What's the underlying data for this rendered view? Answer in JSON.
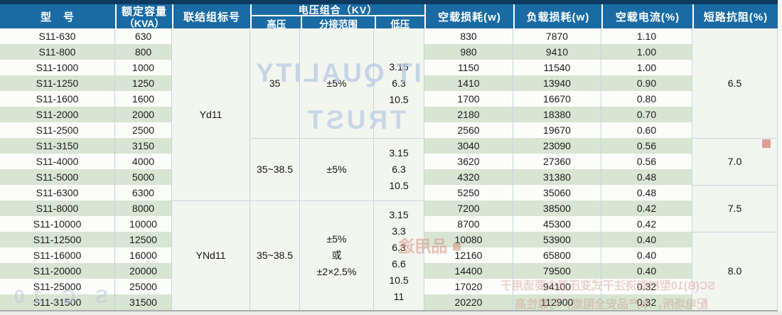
{
  "table": {
    "headers": {
      "model": "型　号",
      "capacity_line1": "额定容量",
      "capacity_line2": "（KVA）",
      "vector_group": "联结组标号",
      "voltage_group": "电压组合（KV）",
      "hv": "高压",
      "tap_range": "分接范围",
      "lv": "低压",
      "no_load_loss": "空载损耗(w)",
      "load_loss": "负载损耗(w)",
      "no_load_current": "空载电流(%)",
      "impedance": "短路抗阻(%)"
    },
    "rows": [
      {
        "model": "S11-630",
        "kva": "630",
        "p0": "830",
        "pk": "7870",
        "i0": "1.10"
      },
      {
        "model": "S11-800",
        "kva": "800",
        "p0": "980",
        "pk": "9410",
        "i0": "1.00"
      },
      {
        "model": "S11-1000",
        "kva": "1000",
        "p0": "1150",
        "pk": "11540",
        "i0": "1.00"
      },
      {
        "model": "S11-1250",
        "kva": "1250",
        "p0": "1410",
        "pk": "13940",
        "i0": "0.90"
      },
      {
        "model": "S11-1600",
        "kva": "1600",
        "p0": "1700",
        "pk": "16670",
        "i0": "0.80"
      },
      {
        "model": "S11-2000",
        "kva": "2000",
        "p0": "2180",
        "pk": "18380",
        "i0": "0.70"
      },
      {
        "model": "S11-2500",
        "kva": "2500",
        "p0": "2560",
        "pk": "19670",
        "i0": "0.60"
      },
      {
        "model": "S11-3150",
        "kva": "3150",
        "p0": "3040",
        "pk": "23090",
        "i0": "0.56"
      },
      {
        "model": "S11-4000",
        "kva": "4000",
        "p0": "3620",
        "pk": "27360",
        "i0": "0.56"
      },
      {
        "model": "S11-5000",
        "kva": "5000",
        "p0": "4320",
        "pk": "31380",
        "i0": "0.48"
      },
      {
        "model": "S11-6300",
        "kva": "6300",
        "p0": "5250",
        "pk": "35060",
        "i0": "0.48"
      },
      {
        "model": "S11-8000",
        "kva": "8000",
        "p0": "7200",
        "pk": "38500",
        "i0": "0.42"
      },
      {
        "model": "S11-10000",
        "kva": "10000",
        "p0": "8700",
        "pk": "45300",
        "i0": "0.42"
      },
      {
        "model": "S11-12500",
        "kva": "12500",
        "p0": "10080",
        "pk": "53900",
        "i0": "0.40"
      },
      {
        "model": "S11-16000",
        "kva": "16000",
        "p0": "12160",
        "pk": "65800",
        "i0": "0.40"
      },
      {
        "model": "S11-20000",
        "kva": "20000",
        "p0": "14400",
        "pk": "79500",
        "i0": "0.40"
      },
      {
        "model": "S11-25000",
        "kva": "25000",
        "p0": "17020",
        "pk": "94100",
        "i0": "0.32"
      },
      {
        "model": "S11-31500",
        "kva": "31500",
        "p0": "20220",
        "pk": "112900",
        "i0": "0.32"
      }
    ],
    "vector_groups": [
      {
        "label": "Yd11",
        "row_span": [
          1,
          11
        ]
      },
      {
        "label": "YNd11",
        "row_span": [
          12,
          18
        ]
      }
    ],
    "voltage_blocks": [
      {
        "hv": "35",
        "tap": [
          "±5%"
        ],
        "lv": [
          "3.15",
          "6.3",
          "10.5"
        ],
        "row_span": [
          1,
          7
        ]
      },
      {
        "hv": "35~38.5",
        "tap": [
          "±5%"
        ],
        "lv": [
          "3.15",
          "6.3",
          "10.5"
        ],
        "row_span": [
          8,
          11
        ]
      },
      {
        "hv": "35~38.5",
        "tap": [
          "±5%",
          "或",
          "±2×2.5%"
        ],
        "lv": [
          "3.15",
          "3.3",
          "6.3",
          "6.6",
          "10.5",
          "11"
        ],
        "row_span": [
          12,
          18
        ]
      }
    ],
    "impedance_blocks": [
      {
        "value": "6.5",
        "row_span": [
          1,
          7
        ]
      },
      {
        "value": "7.0",
        "row_span": [
          8,
          10
        ]
      },
      {
        "value": "7.5",
        "row_span": [
          11,
          13
        ]
      },
      {
        "value": "8.0",
        "row_span": [
          14,
          18
        ]
      }
    ]
  },
  "watermarks": {
    "bleed_blue_line1": "IT QUALITY",
    "bleed_blue_line2": "TRUST",
    "bleed_blue_bottom": "S C 10",
    "bleed_red_label": "■ 品用途",
    "bleed_red_text1": "SC(B)10型树脂浇注干式变压器主要适用于",
    "bleed_red_text2": "配电场所，本产品安全阻燃，可靠性高"
  },
  "colors": {
    "header_blue": "#1a6ba4",
    "header_navy_strip": "#0e3a5f",
    "stripe_green": "#d7e5d2",
    "stripe_white": "#fcfdfa",
    "panel_bg": "#f3f5ef",
    "grid_border": "#c6d6de",
    "text": "#1c1c1c"
  }
}
